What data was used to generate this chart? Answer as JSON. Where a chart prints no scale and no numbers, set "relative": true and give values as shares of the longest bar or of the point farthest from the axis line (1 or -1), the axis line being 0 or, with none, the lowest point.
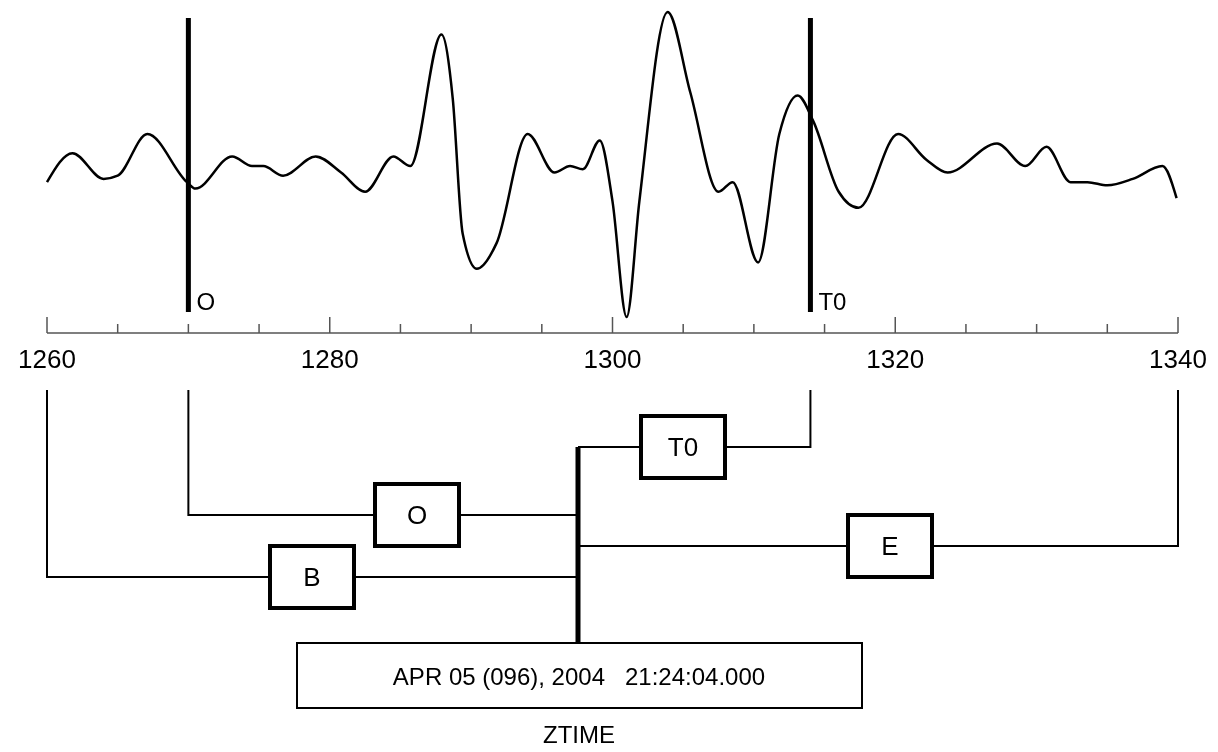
{
  "chart_data": {
    "type": "line",
    "relative": true,
    "x": [
      1260.0,
      1261.8,
      1264.0,
      1265.0,
      1267.1,
      1269.9,
      1270.5,
      1273.1,
      1274.5,
      1275.3,
      1276.7,
      1279.0,
      1280.8,
      1282.5,
      1284.5,
      1285.7,
      1287.9,
      1288.7,
      1289.4,
      1290.4,
      1291.8,
      1294.0,
      1295.9,
      1297.0,
      1297.9,
      1299.1,
      1300.0,
      1301.0,
      1301.9,
      1303.9,
      1305.5,
      1307.5,
      1308.5,
      1310.3,
      1311.8,
      1313.1,
      1314.2,
      1316.0,
      1317.4,
      1320.2,
      1322.2,
      1323.7,
      1327.2,
      1329.2,
      1330.7,
      1332.4,
      1333.6,
      1335.0,
      1336.8,
      1338.9,
      1339.9
    ],
    "series": [
      {
        "color": "#000000",
        "values": [
          0.47,
          0.56,
          0.48,
          0.49,
          0.62,
          0.47,
          0.45,
          0.55,
          0.52,
          0.52,
          0.49,
          0.55,
          0.5,
          0.44,
          0.55,
          0.52,
          0.93,
          0.73,
          0.31,
          0.2,
          0.28,
          0.62,
          0.5,
          0.52,
          0.51,
          0.6,
          0.41,
          0.05,
          0.41,
          1.0,
          0.75,
          0.44,
          0.47,
          0.22,
          0.62,
          0.74,
          0.66,
          0.44,
          0.39,
          0.62,
          0.54,
          0.5,
          0.59,
          0.52,
          0.58,
          0.47,
          0.47,
          0.46,
          0.48,
          0.52,
          0.42
        ]
      }
    ],
    "xlim": [
      1260,
      1340
    ],
    "xticks": [
      1260,
      {
        "value": 1265,
        "label": null
      },
      {
        "value": 1270,
        "label": null
      },
      {
        "value": 1275,
        "label": null
      },
      1280,
      {
        "value": 1285,
        "label": null
      },
      {
        "value": 1290,
        "label": null
      },
      {
        "value": 1295,
        "label": null
      },
      1300,
      {
        "value": 1305,
        "label": null
      },
      {
        "value": 1310,
        "label": null
      },
      {
        "value": 1315,
        "label": null
      },
      1320,
      {
        "value": 1325,
        "label": null
      },
      {
        "value": 1330,
        "label": null
      },
      {
        "value": 1335,
        "label": null
      },
      1340
    ],
    "ref_lines": [
      {
        "axis": "x",
        "value": 1270,
        "label": "O",
        "color": "#000000"
      },
      {
        "axis": "x",
        "value": 1314,
        "label": "T0",
        "color": "#000000"
      }
    ],
    "annotations": [
      "T0",
      "O",
      "E",
      "B",
      "APR 05 (096), 2004   21:24:04.000",
      "ZTIME"
    ]
  }
}
